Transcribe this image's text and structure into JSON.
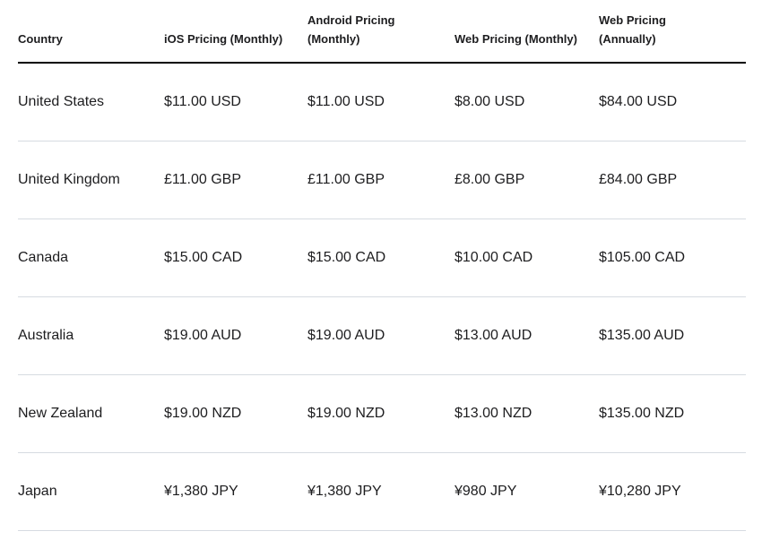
{
  "page": {
    "background": "#ffffff"
  },
  "colors": {
    "text": "#1d1d1f",
    "header_rule": "#000000",
    "row_divider": "#d6dbe1"
  },
  "display": {
    "headers": [
      "Country",
      "iOS Pricing (Monthly)",
      "Android Pricing\n(Monthly)",
      "Web Pricing (Monthly)",
      "Web Pricing\n(Annually)"
    ]
  },
  "chart_data": {
    "type": "table",
    "title": "",
    "columns": [
      "Country",
      "iOS Pricing (Monthly)",
      "Android Pricing (Monthly)",
      "Web Pricing (Monthly)",
      "Web Pricing (Annually)"
    ],
    "rows": [
      [
        "United States",
        "$11.00 USD",
        "$11.00 USD",
        "$8.00 USD",
        "$84.00 USD"
      ],
      [
        "United Kingdom",
        "£11.00 GBP",
        "£11.00 GBP",
        "£8.00 GBP",
        "£84.00 GBP"
      ],
      [
        "Canada",
        "$15.00 CAD",
        "$15.00 CAD",
        "$10.00 CAD",
        "$105.00 CAD"
      ],
      [
        "Australia",
        "$19.00 AUD",
        "$19.00 AUD",
        "$13.00 AUD",
        "$135.00 AUD"
      ],
      [
        "New Zealand",
        "$19.00 NZD",
        "$19.00 NZD",
        "$13.00 NZD",
        "$135.00 NZD"
      ],
      [
        "Japan",
        "¥1,380 JPY",
        "¥1,380 JPY",
        "¥980 JPY",
        "¥10,280 JPY"
      ]
    ]
  }
}
